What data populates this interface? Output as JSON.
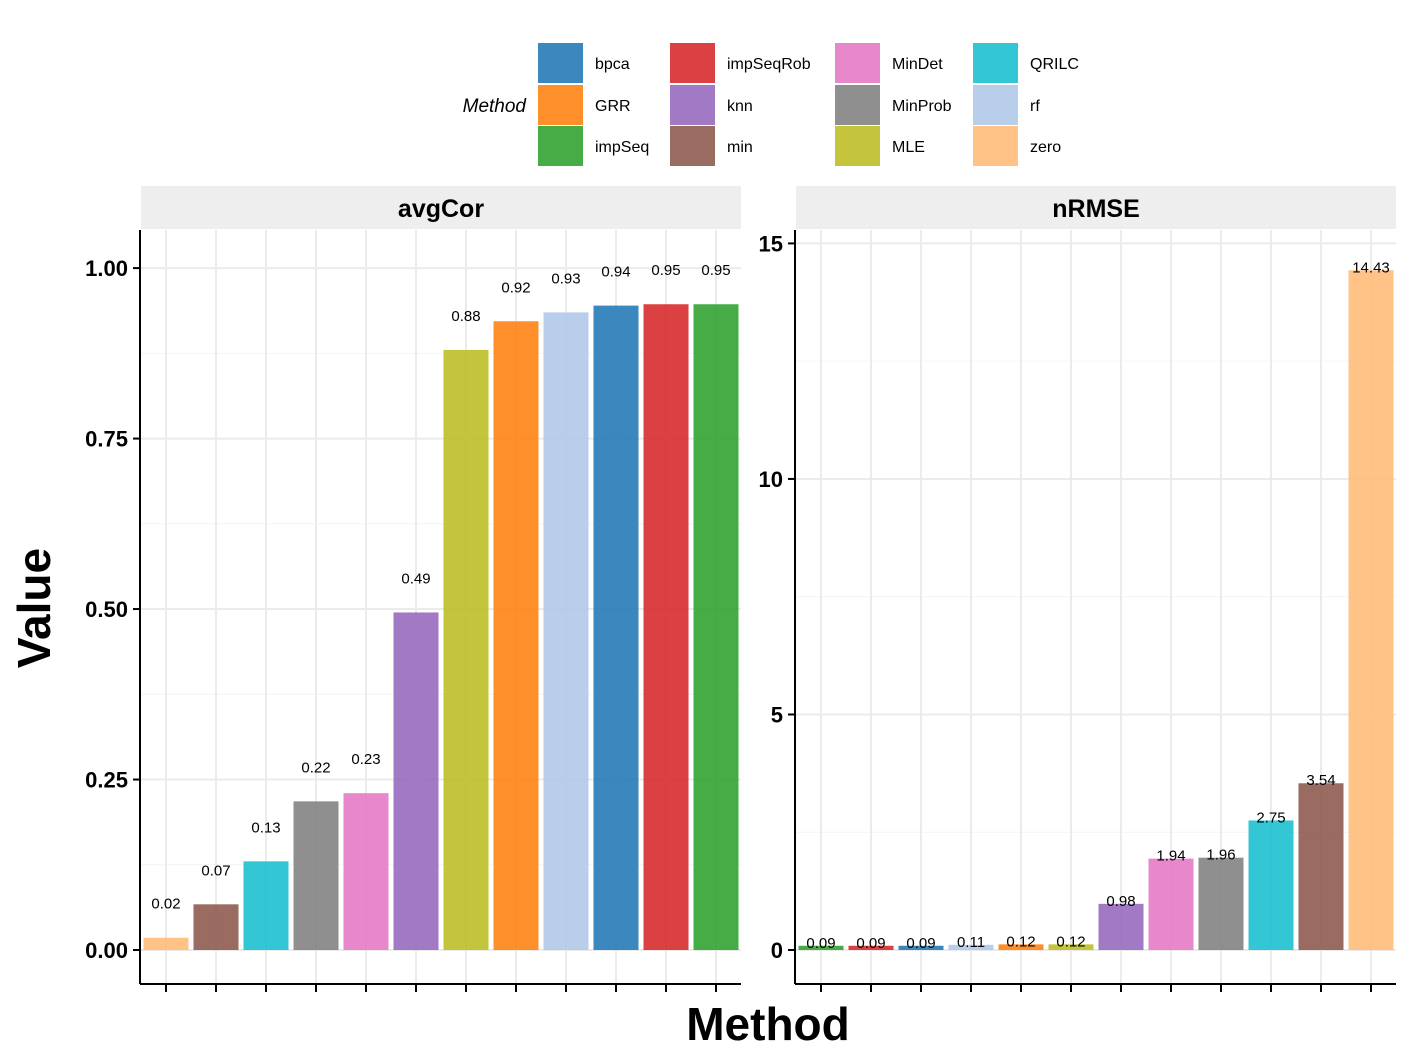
{
  "xlabel": "Method",
  "ylabel": "Value",
  "legend": {
    "title": "Method",
    "placement": "top",
    "items": [
      {
        "name": "bpca",
        "color": "#1F77B4"
      },
      {
        "name": "GRR",
        "color": "#FF7F0E"
      },
      {
        "name": "impSeq",
        "color": "#2CA02C"
      },
      {
        "name": "impSeqRob",
        "color": "#D62728"
      },
      {
        "name": "knn",
        "color": "#9467BD"
      },
      {
        "name": "min",
        "color": "#8C564B"
      },
      {
        "name": "MinDet",
        "color": "#E377C2"
      },
      {
        "name": "MinProb",
        "color": "#7F7F7F"
      },
      {
        "name": "MLE",
        "color": "#BCBD22"
      },
      {
        "name": "QRILC",
        "color": "#17BECF"
      },
      {
        "name": "rf",
        "color": "#AEC7E8"
      },
      {
        "name": "zero",
        "color": "#FFBB78"
      }
    ]
  },
  "chart_data": [
    {
      "type": "bar",
      "title": "avgCor",
      "xlabel": "Method",
      "ylabel": "Value",
      "grid": true,
      "ylim": [
        0,
        1.05
      ],
      "yticks": [
        0.0,
        0.25,
        0.5,
        0.75,
        1.0
      ],
      "ytick_labels": [
        "0.00",
        "0.25",
        "0.50",
        "0.75",
        "1.00"
      ],
      "categories": [
        "zero",
        "min",
        "QRILC",
        "MinProb",
        "MinDet",
        "knn",
        "MLE",
        "GRR",
        "rf",
        "bpca",
        "impSeqRob",
        "impSeq"
      ],
      "values": [
        0.018,
        0.067,
        0.13,
        0.218,
        0.23,
        0.495,
        0.88,
        0.922,
        0.935,
        0.945,
        0.947,
        0.947
      ],
      "labels": [
        "0.02",
        "0.07",
        "0.13",
        "0.22",
        "0.23",
        "0.49",
        "0.88",
        "0.92",
        "0.93",
        "0.94",
        "0.95",
        "0.95"
      ]
    },
    {
      "type": "bar",
      "title": "nRMSE",
      "xlabel": "Method",
      "ylabel": "Value",
      "grid": true,
      "ylim": [
        0,
        15.2
      ],
      "yticks": [
        0,
        5,
        10,
        15
      ],
      "ytick_labels": [
        "0",
        "5",
        "10",
        "15"
      ],
      "categories": [
        "impSeq",
        "impSeqRob",
        "bpca",
        "rf",
        "GRR",
        "MLE",
        "knn",
        "MinDet",
        "MinProb",
        "QRILC",
        "min",
        "zero"
      ],
      "values": [
        0.09,
        0.09,
        0.09,
        0.11,
        0.12,
        0.12,
        0.98,
        1.94,
        1.96,
        2.75,
        3.54,
        14.43
      ],
      "labels": [
        "0.09",
        "0.09",
        "0.09",
        "0.11",
        "0.12",
        "0.12",
        "0.98",
        "1.94",
        "1.96",
        "2.75",
        "3.54",
        "14.43"
      ]
    }
  ]
}
